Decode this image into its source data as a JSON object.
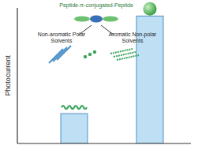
{
  "chart_data": {
    "type": "bar",
    "y_label": "Photocurrent",
    "categories": [
      null,
      null
    ],
    "values": [
      22,
      94
    ],
    "color": "#bfe0f4",
    "ylim": [
      0,
      100
    ],
    "yticks": [],
    "tick_labels": false,
    "annotations": [
      "Peptide-π-conjugated-Peptide",
      "Non-aromatic Polar Solvents",
      "Aromatic Non-polar Solvents"
    ]
  }
}
